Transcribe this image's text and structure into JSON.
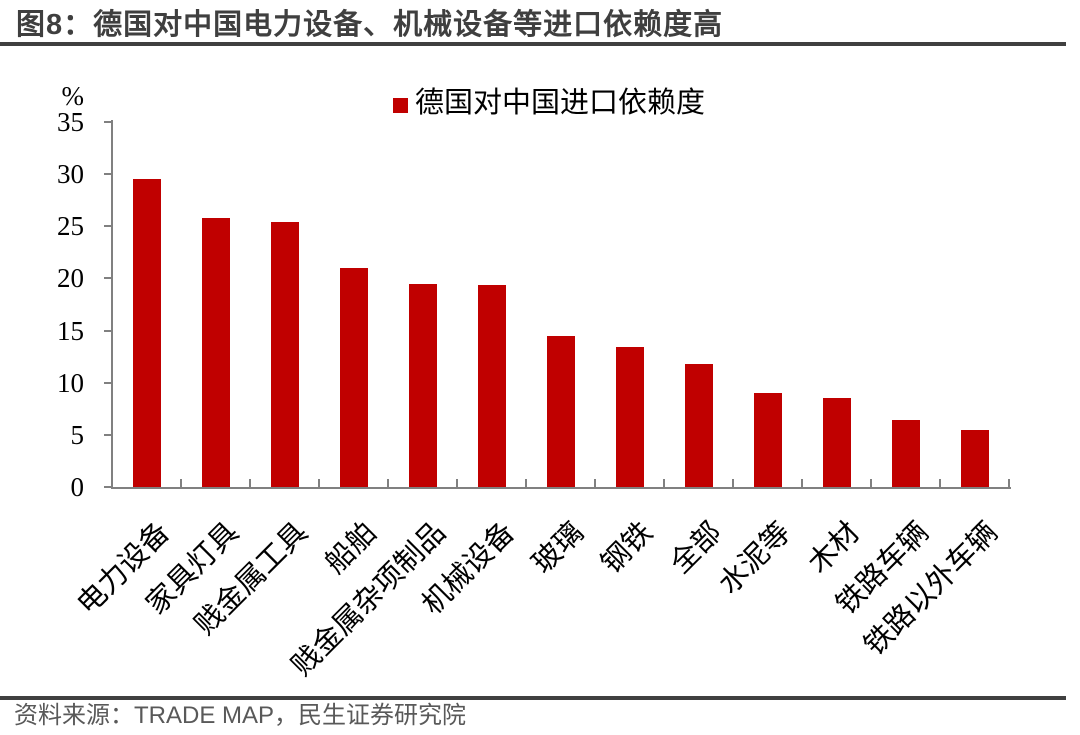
{
  "figure": {
    "title": "图8：德国对中国电力设备、机械设备等进口依赖度高",
    "source": "资料来源：TRADE MAP，民生证券研究院"
  },
  "chart_data": {
    "type": "bar",
    "title": "图8：德国对中国电力设备、机械设备等进口依赖度高",
    "legend": [
      {
        "label": "德国对中国进口依赖度",
        "color": "#C00000"
      }
    ],
    "legend_position": "top-center",
    "unit_label": "%",
    "categories": [
      "电力设备",
      "家具灯具",
      "贱金属工具",
      "船舶",
      "贱金属杂项制品",
      "机械设备",
      "玻璃",
      "钢铁",
      "全部",
      "水泥等",
      "木材",
      "铁路车辆",
      "铁路以外车辆"
    ],
    "values": [
      29.5,
      25.8,
      25.4,
      21.0,
      19.5,
      19.4,
      14.5,
      13.4,
      11.8,
      9.0,
      8.5,
      6.4,
      5.5
    ],
    "ylim": [
      0,
      35
    ],
    "yticks": [
      0,
      5,
      10,
      15,
      20,
      25,
      30,
      35
    ],
    "x_label_rotation": -45,
    "grid": false,
    "bar_color": "#C00000",
    "axis_color": "#808080"
  },
  "colors": {
    "bar": "#C00000",
    "title_text": "#3F3F3F",
    "divider_rule": "#404040",
    "axis": "#808080",
    "source_text": "#595959"
  }
}
